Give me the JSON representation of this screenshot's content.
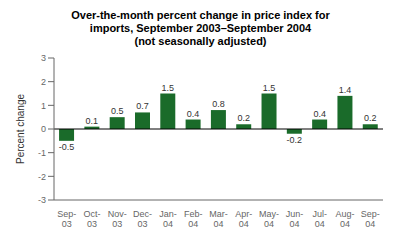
{
  "chart_data": {
    "type": "bar",
    "title": "Over-the-month percent change in price index for\nimports, September 2003–September 2004\n(not seasonally adjusted)",
    "ylabel": "Percent change",
    "categories": [
      "Sep-\n03",
      "Oct-\n03",
      "Nov-\n03",
      "Dec-\n03",
      "Jan-\n04",
      "Feb-\n04",
      "Mar-\n04",
      "Apr-\n04",
      "May-\n04",
      "Jun-\n04",
      "Jul-\n04",
      "Aug-\n04",
      "Sep-\n04"
    ],
    "values": [
      -0.5,
      0.1,
      0.5,
      0.7,
      1.5,
      0.4,
      0.8,
      0.2,
      1.5,
      -0.2,
      0.4,
      1.4,
      0.2
    ],
    "color": "#1a6b2a",
    "ylim": [
      -3,
      3
    ],
    "yticks": [
      -3,
      -2,
      -1,
      0,
      1,
      2,
      3
    ],
    "grid": false,
    "data_labels": true
  }
}
